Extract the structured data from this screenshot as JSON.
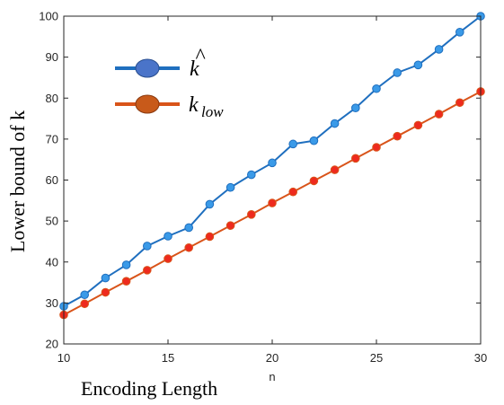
{
  "chart_data": {
    "type": "line",
    "xlabel": "n",
    "ylabel": "Lower bound of k",
    "caption": "Encoding Length",
    "xlim": [
      10,
      30
    ],
    "ylim": [
      20,
      100
    ],
    "xticks": [
      10,
      15,
      20,
      25,
      30
    ],
    "yticks": [
      20,
      30,
      40,
      50,
      60,
      70,
      80,
      90,
      100
    ],
    "grid": false,
    "legend_position": "top-left",
    "x": [
      10,
      11,
      12,
      13,
      14,
      15,
      16,
      17,
      18,
      19,
      20,
      21,
      22,
      23,
      24,
      25,
      26,
      27,
      28,
      29,
      30
    ],
    "series": [
      {
        "name": "k̂",
        "legend_main": "k",
        "legend_hat": "^",
        "line_color": "#1f6fbf",
        "marker_color": "#3a9ae8",
        "legend_marker_color": "#4a74c9",
        "values": [
          29.2,
          32.0,
          36.1,
          39.3,
          43.9,
          46.3,
          48.4,
          54.1,
          58.2,
          61.3,
          64.2,
          68.8,
          69.6,
          73.8,
          77.6,
          82.3,
          86.2,
          88.1,
          91.9,
          96.1,
          100.0
        ]
      },
      {
        "name": "k_low",
        "legend_main": "k",
        "legend_sub": "low",
        "line_color": "#d9541a",
        "marker_color": "#ee2a1e",
        "legend_marker_color": "#c85a1a",
        "values": [
          27.1,
          29.8,
          32.6,
          35.3,
          38.0,
          40.8,
          43.5,
          46.2,
          48.9,
          51.6,
          54.4,
          57.1,
          59.8,
          62.5,
          65.3,
          68.0,
          70.7,
          73.4,
          76.1,
          78.9,
          81.6
        ]
      }
    ]
  }
}
